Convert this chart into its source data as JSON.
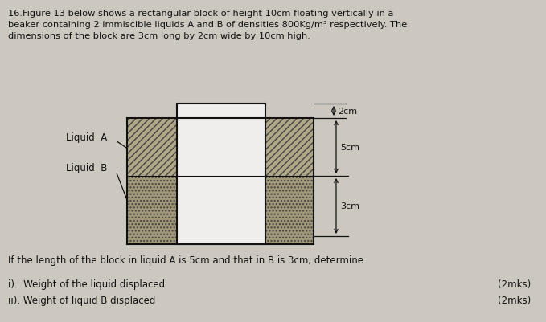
{
  "bg_color": "#ccc8c0",
  "text_color": "#111111",
  "title_text": "16.Figure 13 below shows a rectangular block of height 10cm floating vertically in a\nbeaker containing 2 immiscible liquids A and B of densities 800Kg/m³ respectively. The\ndimensions of the block are 3cm long by 2cm wide by 10cm high.",
  "question_text": "If the length of the block in liquid A is 5cm and that in B is 3cm, determine",
  "q1_text": "i).  Weight of the liquid displaced",
  "q2_text": "ii). Weight of liquid B displaced",
  "marks1": "(2mks)",
  "marks2": "(2mks)",
  "liquid_A_label": "Liquid  A",
  "liquid_B_label": "Liquid  B",
  "dim_2cm": "2cm",
  "dim_5cm": "5cm",
  "dim_3cm": "3cm",
  "liquid_A_color": "#b0a888",
  "liquid_B_color": "#a09878",
  "block_color": "#f0eeec",
  "line_color": "#111111"
}
